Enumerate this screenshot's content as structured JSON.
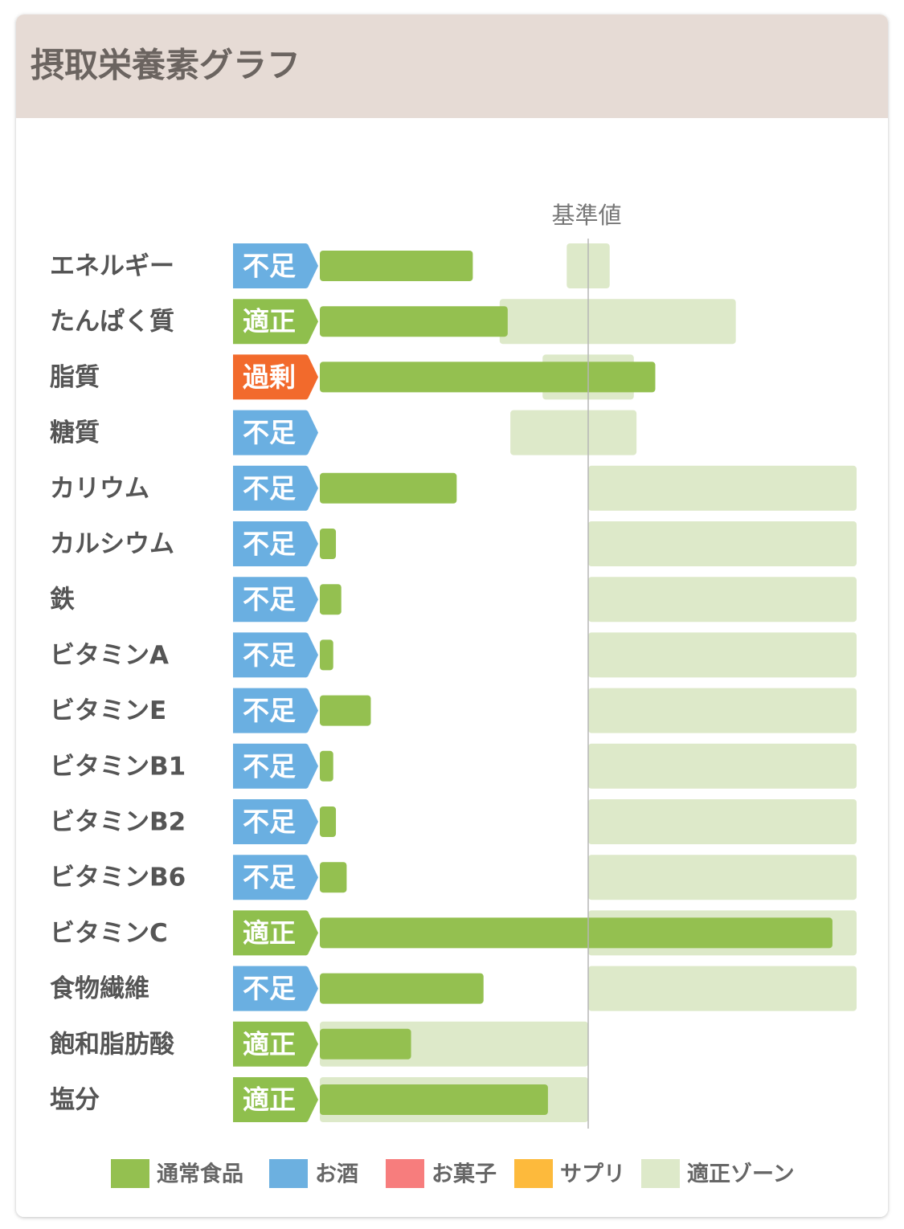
{
  "chart_data": {
    "type": "bar",
    "title": "摂取栄養素グラフ",
    "categories": [
      "エネルギー",
      "たんぱく質",
      "脂質",
      "糖質",
      "カリウム",
      "カルシウム",
      "鉄",
      "ビタミンA",
      "ビタミンE",
      "ビタミンB1",
      "ビタミンB2",
      "ビタミンB6",
      "ビタミンC",
      "食物繊維",
      "飽和脂肪酸",
      "塩分"
    ],
    "status": [
      "不足",
      "適正",
      "過剰",
      "不足",
      "不足",
      "不足",
      "不足",
      "不足",
      "不足",
      "不足",
      "不足",
      "不足",
      "適正",
      "不足",
      "適正",
      "適正"
    ],
    "status_colors": {
      "不足": "#6aafe1",
      "適正": "#8fbf4d",
      "過剰": "#f26a2c"
    },
    "series": [
      {
        "name": "通常食品",
        "color": "#94c050",
        "values": [
          57,
          70,
          125,
          0,
          51,
          6,
          8,
          5,
          19,
          5,
          6,
          10,
          191,
          61,
          34,
          85
        ]
      },
      {
        "name": "お酒",
        "color": "#6cb0e0",
        "values": [
          0,
          0,
          0,
          0,
          0,
          0,
          0,
          0,
          0,
          0,
          0,
          0,
          0,
          0,
          0,
          0
        ]
      },
      {
        "name": "お菓子",
        "color": "#f77d7d",
        "values": [
          0,
          0,
          0,
          0,
          0,
          0,
          0,
          0,
          0,
          0,
          0,
          0,
          0,
          0,
          0,
          0
        ]
      },
      {
        "name": "サプリ",
        "color": "#fdba3c",
        "values": [
          0,
          0,
          0,
          0,
          0,
          0,
          0,
          0,
          0,
          0,
          0,
          0,
          0,
          0,
          0,
          0
        ]
      }
    ],
    "zone": {
      "name": "適正ゾーン",
      "color": "#dde9c9",
      "ranges": [
        [
          92,
          108
        ],
        [
          67,
          155
        ],
        [
          83,
          117
        ],
        [
          71,
          118
        ],
        [
          100,
          200
        ],
        [
          100,
          200
        ],
        [
          100,
          200
        ],
        [
          100,
          200
        ],
        [
          100,
          200
        ],
        [
          100,
          200
        ],
        [
          100,
          200
        ],
        [
          100,
          200
        ],
        [
          100,
          200
        ],
        [
          100,
          200
        ],
        [
          0,
          100
        ],
        [
          0,
          100
        ]
      ]
    },
    "reference_line": {
      "label": "基準値",
      "value": 100,
      "color": "#b5b5b5"
    },
    "xlim": [
      0,
      200
    ]
  }
}
